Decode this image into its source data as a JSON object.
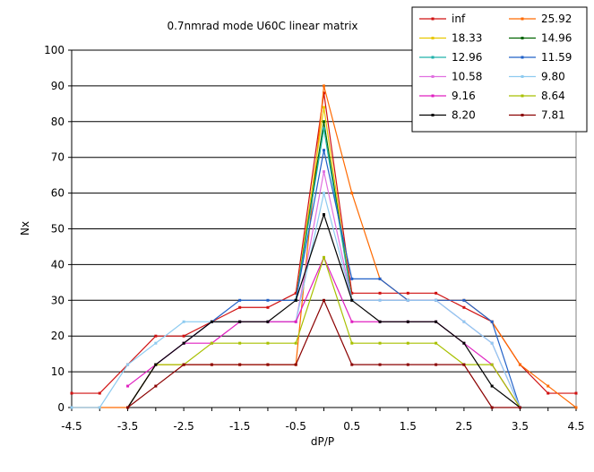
{
  "chart_data": {
    "type": "line",
    "title": "0.7nmrad mode U60C linear matrix",
    "xlabel": "dP/P",
    "ylabel": "Nx",
    "xlim": [
      -4.5,
      4.5
    ],
    "ylim": [
      0,
      100
    ],
    "xticks": [
      -4.5,
      -3.5,
      -2.5,
      -1.5,
      -0.5,
      0.5,
      1.5,
      2.5,
      3.5,
      4.5
    ],
    "xtick_labels": [
      "-4.5",
      "-3.5",
      "-2.5",
      "-1.5",
      "-0.5",
      "0.5",
      "1.5",
      "2.5",
      "3.5",
      "4.5"
    ],
    "yticks": [
      0,
      10,
      20,
      30,
      40,
      50,
      60,
      70,
      80,
      90,
      100
    ],
    "ytick_labels": [
      "0",
      "10",
      "20",
      "30",
      "40",
      "50",
      "60",
      "70",
      "80",
      "90",
      "100"
    ],
    "grid": "horizontal",
    "legend_position": "top-right",
    "x": [
      -4.5,
      -4.0,
      -3.5,
      -3.0,
      -2.5,
      -2.0,
      -1.5,
      -1.0,
      -0.5,
      0.0,
      0.5,
      1.0,
      1.5,
      2.0,
      2.5,
      3.0,
      3.5,
      4.0,
      4.5
    ],
    "series": [
      {
        "name": "inf",
        "color": "#d01010",
        "values": [
          4,
          4,
          12,
          20,
          20,
          24,
          28,
          28,
          32,
          88,
          32,
          32,
          32,
          32,
          28,
          24,
          12,
          4,
          4
        ]
      },
      {
        "name": "25.92",
        "color": "#ff6a00",
        "values": [
          0,
          0,
          0,
          12,
          12,
          12,
          12,
          12,
          12,
          90,
          60,
          36,
          30,
          30,
          30,
          24,
          12,
          6,
          0
        ]
      },
      {
        "name": "18.33",
        "color": "#e8c800",
        "values": [
          null,
          null,
          null,
          null,
          null,
          null,
          null,
          null,
          30,
          84,
          30,
          null,
          null,
          null,
          null,
          null,
          null,
          null,
          null
        ]
      },
      {
        "name": "14.96",
        "color": "#006400",
        "values": [
          null,
          null,
          null,
          null,
          null,
          null,
          null,
          null,
          30,
          80,
          30,
          null,
          null,
          null,
          null,
          null,
          null,
          null,
          null
        ]
      },
      {
        "name": "12.96",
        "color": "#20b2aa",
        "values": [
          null,
          null,
          null,
          null,
          null,
          null,
          null,
          null,
          30,
          78,
          30,
          null,
          null,
          null,
          null,
          null,
          null,
          null,
          null
        ]
      },
      {
        "name": "11.59",
        "color": "#2060c8",
        "values": [
          null,
          null,
          0,
          12,
          18,
          24,
          30,
          30,
          30,
          72,
          36,
          36,
          30,
          30,
          30,
          24,
          0,
          null,
          null
        ]
      },
      {
        "name": "10.58",
        "color": "#e070e0",
        "values": [
          null,
          null,
          0,
          12,
          18,
          24,
          24,
          24,
          24,
          66,
          30,
          30,
          30,
          30,
          24,
          18,
          0,
          null,
          null
        ]
      },
      {
        "name": "9.80",
        "color": "#8ecbf0",
        "values": [
          0,
          0,
          12,
          18,
          24,
          24,
          24,
          24,
          24,
          60,
          30,
          30,
          30,
          30,
          24,
          18,
          0,
          null,
          null
        ]
      },
      {
        "name": "9.16",
        "color": "#e020c0",
        "values": [
          null,
          null,
          6,
          12,
          18,
          18,
          24,
          24,
          24,
          42,
          24,
          24,
          24,
          24,
          18,
          12,
          0,
          null,
          null
        ]
      },
      {
        "name": "8.64",
        "color": "#a8c000",
        "values": [
          null,
          null,
          0,
          12,
          12,
          18,
          18,
          18,
          18,
          42,
          18,
          18,
          18,
          18,
          12,
          12,
          0,
          null,
          null
        ]
      },
      {
        "name": "8.20",
        "color": "#000000",
        "values": [
          null,
          null,
          0,
          12,
          18,
          24,
          24,
          24,
          30,
          54,
          30,
          24,
          24,
          24,
          18,
          6,
          0,
          null,
          null
        ]
      },
      {
        "name": "7.81",
        "color": "#8b0000",
        "values": [
          null,
          null,
          0,
          6,
          12,
          12,
          12,
          12,
          12,
          30,
          12,
          12,
          12,
          12,
          12,
          0,
          0,
          null,
          null
        ]
      }
    ]
  }
}
